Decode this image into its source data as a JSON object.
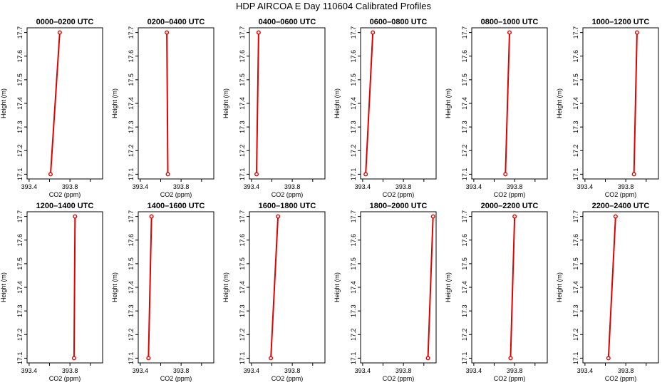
{
  "title": "HDP AIRCOA E  Day 110604  Calibrated Profiles",
  "style": {
    "line_color": "#e00000",
    "marker_color": "#e00000",
    "axis_color": "#000000"
  },
  "axes": {
    "xlabel": "CO2 (ppm)",
    "ylabel": "Height (m)",
    "xlim": [
      393.38,
      394.12
    ],
    "ylim": [
      17.08,
      17.72
    ],
    "xticks": [
      393.4,
      393.6,
      393.8,
      394.0
    ],
    "xtick_labels": [
      "393.4",
      "",
      "393.8",
      ""
    ],
    "yticks": [
      17.1,
      17.2,
      17.3,
      17.4,
      17.5,
      17.6,
      17.7
    ],
    "ytick_labels": [
      "17.1",
      "17.2",
      "17.3",
      "17.4",
      "17.5",
      "17.6",
      "17.7"
    ]
  },
  "chart_data": [
    {
      "type": "line",
      "title": "0000–0200 UTC",
      "x": [
        393.61,
        393.7
      ],
      "y": [
        17.1,
        17.7
      ]
    },
    {
      "type": "line",
      "title": "0200–0400 UTC",
      "x": [
        393.67,
        393.66
      ],
      "y": [
        17.1,
        17.7
      ]
    },
    {
      "type": "line",
      "title": "0400–0600 UTC",
      "x": [
        393.45,
        393.47
      ],
      "y": [
        17.1,
        17.7
      ]
    },
    {
      "type": "line",
      "title": "0600–0800 UTC",
      "x": [
        393.43,
        393.5
      ],
      "y": [
        17.1,
        17.7
      ]
    },
    {
      "type": "line",
      "title": "0800–1000 UTC",
      "x": [
        393.71,
        393.75
      ],
      "y": [
        17.1,
        17.7
      ]
    },
    {
      "type": "line",
      "title": "1000–1200 UTC",
      "x": [
        393.88,
        393.91
      ],
      "y": [
        17.1,
        17.7
      ]
    },
    {
      "type": "line",
      "title": "1200–1400 UTC",
      "x": [
        393.84,
        393.85
      ],
      "y": [
        17.1,
        17.7
      ]
    },
    {
      "type": "line",
      "title": "1400–1600 UTC",
      "x": [
        393.48,
        393.51
      ],
      "y": [
        17.1,
        17.7
      ]
    },
    {
      "type": "line",
      "title": "1600–1800 UTC",
      "x": [
        393.59,
        393.66
      ],
      "y": [
        17.1,
        17.7
      ]
    },
    {
      "type": "line",
      "title": "1800–2000 UTC",
      "x": [
        394.04,
        394.09
      ],
      "y": [
        17.1,
        17.7
      ]
    },
    {
      "type": "line",
      "title": "2000–2200 UTC",
      "x": [
        393.76,
        393.8
      ],
      "y": [
        17.1,
        17.7
      ]
    },
    {
      "type": "line",
      "title": "2200–2400 UTC",
      "x": [
        393.63,
        393.7
      ],
      "y": [
        17.1,
        17.7
      ]
    }
  ]
}
